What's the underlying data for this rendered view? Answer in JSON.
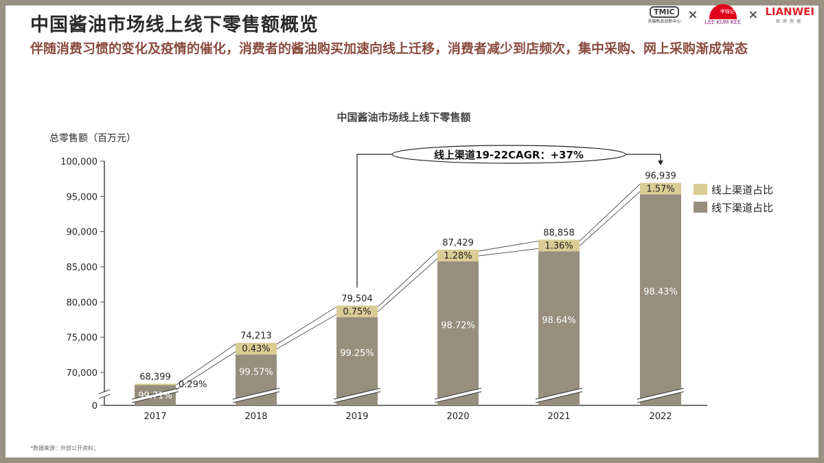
{
  "title": "中国酱油市场线上线下零售额概览",
  "subtitle": "伴随消费习惯的变化及疫情的催化，消费者的酱油购买加速向线上迁移，消费者减少到店频次，集中采购、网上采购渐成常态",
  "logos": {
    "tmic": "TMIC",
    "tmic_sub": "天猫新品创新中心",
    "lkk": "LEE KUM KEE",
    "lkk_cn": "李锦记",
    "lianwei": "LIANWEI",
    "lianwei_sub": "联 蔚 数 据",
    "separator": "×"
  },
  "source": "*数据来源：外部公开资料；",
  "colors": {
    "online": "#d9cc94",
    "offline": "#978e7e"
  },
  "chart_data": {
    "type": "bar",
    "stacked": true,
    "title": "中国酱油市场线上线下零售额",
    "ylabel": "总零售额（百万元）",
    "ylim": [
      70000,
      100000
    ],
    "yaxis_break": true,
    "yticks": [
      "0",
      "70,000",
      "75,000",
      "80,000",
      "85,000",
      "90,000",
      "95,000",
      "100,000"
    ],
    "categories": [
      "2017",
      "2018",
      "2019",
      "2020",
      "2021",
      "2022"
    ],
    "totals": [
      68399,
      74213,
      79504,
      87429,
      88858,
      96939
    ],
    "total_labels": [
      "68,399",
      "74,213",
      "79,504",
      "87,429",
      "88,858",
      "96,939"
    ],
    "series": [
      {
        "name": "线上渠道占比",
        "color": "#d9cc94",
        "values": [
          "0.29%",
          "0.43%",
          "0.75%",
          "1.28%",
          "1.36%",
          "1.57%"
        ],
        "share": [
          0.29,
          0.43,
          0.75,
          1.28,
          1.36,
          1.57
        ]
      },
      {
        "name": "线下渠道占比",
        "color": "#978e7e",
        "values": [
          "99.71%",
          "99.57%",
          "99.25%",
          "98.72%",
          "98.64%",
          "98.43%"
        ],
        "share": [
          99.71,
          99.57,
          99.25,
          98.72,
          98.64,
          98.43
        ]
      }
    ],
    "annotation": "线上渠道19-22CAGR：+37%",
    "legend": "right"
  }
}
